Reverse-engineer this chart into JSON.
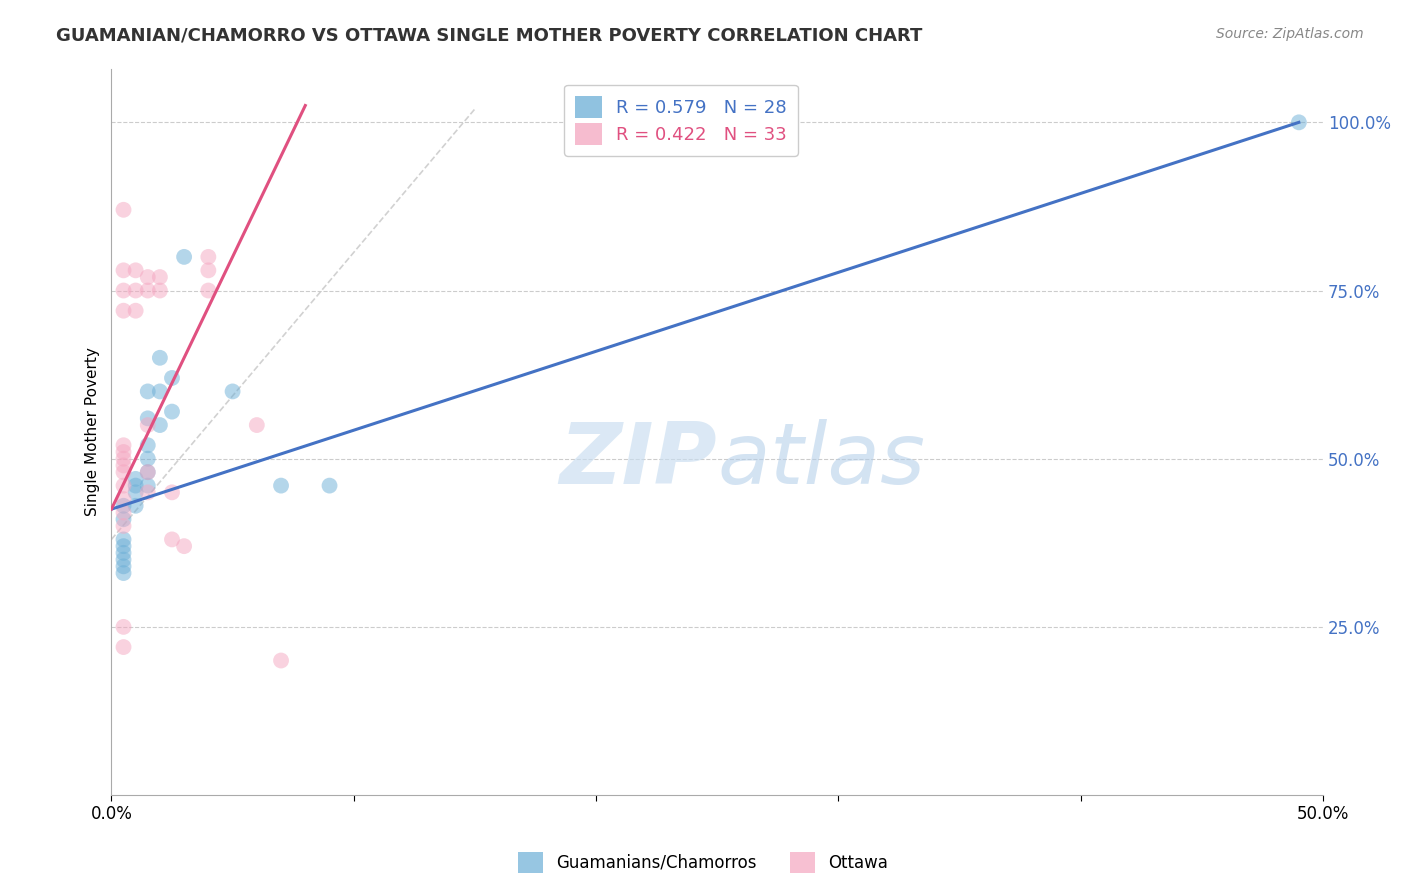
{
  "title": "GUAMANIAN/CHAMORRO VS OTTAWA SINGLE MOTHER POVERTY CORRELATION CHART",
  "source": "Source: ZipAtlas.com",
  "ylabel": "Single Mother Poverty",
  "y_ticks": [
    0.0,
    0.25,
    0.5,
    0.75,
    1.0
  ],
  "y_tick_labels": [
    "",
    "25.0%",
    "50.0%",
    "75.0%",
    "100.0%"
  ],
  "x_ticks": [
    0.0,
    0.1,
    0.2,
    0.3,
    0.4,
    0.5
  ],
  "x_tick_labels": [
    "0.0%",
    "",
    "",
    "",
    "",
    "50.0%"
  ],
  "xlim": [
    0.0,
    0.5
  ],
  "ylim": [
    0.0,
    1.08
  ],
  "watermark": "ZIPatlas",
  "legend_labels": [
    "Guamanians/Chamorros",
    "Ottawa"
  ],
  "blue_color": "#6baed6",
  "pink_color": "#f4a6c0",
  "blue_line_color": "#4472c4",
  "pink_line_color": "#e05080",
  "diagonal_color": "#cccccc",
  "blue_scatter": [
    [
      0.005,
      0.43
    ],
    [
      0.005,
      0.41
    ],
    [
      0.005,
      0.38
    ],
    [
      0.005,
      0.37
    ],
    [
      0.005,
      0.36
    ],
    [
      0.005,
      0.35
    ],
    [
      0.005,
      0.34
    ],
    [
      0.005,
      0.33
    ],
    [
      0.01,
      0.47
    ],
    [
      0.01,
      0.46
    ],
    [
      0.01,
      0.45
    ],
    [
      0.01,
      0.43
    ],
    [
      0.015,
      0.6
    ],
    [
      0.015,
      0.56
    ],
    [
      0.015,
      0.52
    ],
    [
      0.015,
      0.5
    ],
    [
      0.015,
      0.48
    ],
    [
      0.015,
      0.46
    ],
    [
      0.02,
      0.65
    ],
    [
      0.02,
      0.6
    ],
    [
      0.02,
      0.55
    ],
    [
      0.025,
      0.62
    ],
    [
      0.025,
      0.57
    ],
    [
      0.03,
      0.8
    ],
    [
      0.05,
      0.6
    ],
    [
      0.07,
      0.46
    ],
    [
      0.09,
      0.46
    ],
    [
      0.49,
      1.0
    ]
  ],
  "pink_scatter": [
    [
      0.005,
      0.87
    ],
    [
      0.005,
      0.78
    ],
    [
      0.005,
      0.75
    ],
    [
      0.005,
      0.72
    ],
    [
      0.005,
      0.52
    ],
    [
      0.005,
      0.51
    ],
    [
      0.005,
      0.5
    ],
    [
      0.005,
      0.49
    ],
    [
      0.005,
      0.48
    ],
    [
      0.005,
      0.46
    ],
    [
      0.005,
      0.44
    ],
    [
      0.005,
      0.42
    ],
    [
      0.005,
      0.4
    ],
    [
      0.005,
      0.25
    ],
    [
      0.005,
      0.22
    ],
    [
      0.01,
      0.78
    ],
    [
      0.01,
      0.75
    ],
    [
      0.01,
      0.72
    ],
    [
      0.015,
      0.77
    ],
    [
      0.015,
      0.75
    ],
    [
      0.015,
      0.55
    ],
    [
      0.015,
      0.48
    ],
    [
      0.015,
      0.45
    ],
    [
      0.02,
      0.77
    ],
    [
      0.02,
      0.75
    ],
    [
      0.025,
      0.45
    ],
    [
      0.025,
      0.38
    ],
    [
      0.03,
      0.37
    ],
    [
      0.04,
      0.8
    ],
    [
      0.04,
      0.78
    ],
    [
      0.04,
      0.75
    ],
    [
      0.06,
      0.55
    ],
    [
      0.07,
      0.2
    ]
  ],
  "blue_R": 0.579,
  "blue_N": 28,
  "pink_R": 0.422,
  "pink_N": 33,
  "blue_line": [
    0.0,
    0.425,
    0.49,
    1.0
  ],
  "pink_line": [
    0.0,
    0.425,
    0.05,
    0.8
  ],
  "figsize": [
    14.06,
    8.92
  ],
  "dpi": 100
}
